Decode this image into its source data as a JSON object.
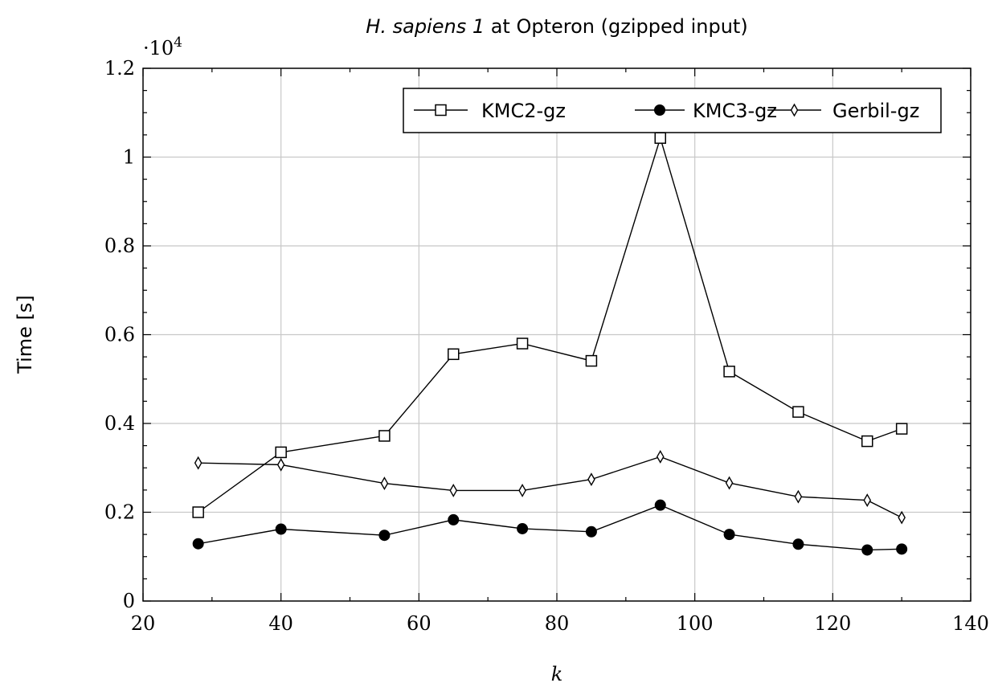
{
  "chart_data": {
    "type": "line",
    "title": {
      "italic_part": "H. sapiens 1",
      "rest": " at Opteron (gzipped input)"
    },
    "xlabel": "k",
    "ylabel": "Time [s]",
    "y_scale_label": "·10",
    "y_scale_exponent": "4",
    "xlim": [
      20,
      140
    ],
    "ylim": [
      0,
      1.2
    ],
    "x_ticks": [
      20,
      40,
      60,
      80,
      100,
      120,
      140
    ],
    "x_tick_labels": [
      "20",
      "40",
      "60",
      "80",
      "100",
      "120",
      "140"
    ],
    "y_ticks": [
      0,
      0.2,
      0.4,
      0.6,
      0.8,
      1,
      1.2
    ],
    "y_tick_labels": [
      "0",
      "0.2",
      "0.4",
      "0.6",
      "0.8",
      "1",
      "1.2"
    ],
    "grid": true,
    "legend_position": "top-right",
    "series": [
      {
        "name": "KMC2-gz",
        "marker": "square-open",
        "x": [
          28,
          40,
          55,
          65,
          75,
          85,
          95,
          105,
          115,
          125,
          130
        ],
        "y": [
          0.2,
          0.335,
          0.372,
          0.556,
          0.58,
          0.541,
          1.043,
          0.517,
          0.426,
          0.36,
          0.388
        ]
      },
      {
        "name": "KMC3-gz",
        "marker": "circle-filled",
        "x": [
          28,
          40,
          55,
          65,
          75,
          85,
          95,
          105,
          115,
          125,
          130
        ],
        "y": [
          0.129,
          0.162,
          0.148,
          0.183,
          0.163,
          0.156,
          0.216,
          0.15,
          0.128,
          0.115,
          0.117
        ]
      },
      {
        "name": "Gerbil-gz",
        "marker": "diamond-open",
        "x": [
          28,
          40,
          55,
          65,
          75,
          85,
          95,
          105,
          115,
          125,
          130
        ],
        "y": [
          0.311,
          0.307,
          0.265,
          0.249,
          0.249,
          0.274,
          0.325,
          0.266,
          0.235,
          0.227,
          0.188
        ]
      }
    ]
  }
}
